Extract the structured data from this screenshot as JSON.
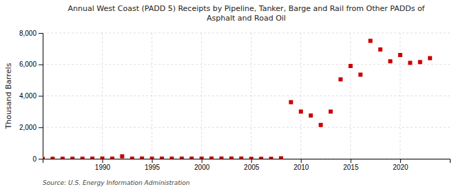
{
  "chart_data": {
    "type": "scatter",
    "title": "Annual West Coast (PADD 5) Receipts by Pipeline, Tanker, Barge and Rail from Other PADDs of\nAsphalt and Road Oil",
    "ylabel": "Thousand Barrels",
    "annotations": [
      "Source: U.S. Energy Information Administration"
    ],
    "x": [
      1984,
      1985,
      1986,
      1987,
      1988,
      1989,
      1990,
      1991,
      1992,
      1993,
      1994,
      1995,
      1996,
      1997,
      1998,
      1999,
      2000,
      2001,
      2002,
      2003,
      2004,
      2005,
      2006,
      2007,
      2008,
      2009,
      2010,
      2011,
      2012,
      2013,
      2014,
      2015,
      2016,
      2017,
      2018,
      2019,
      2020,
      2021,
      2022,
      2023
    ],
    "values": [
      0,
      2,
      5,
      5,
      5,
      10,
      15,
      10,
      155,
      10,
      15,
      10,
      10,
      10,
      10,
      10,
      10,
      15,
      15,
      15,
      15,
      0,
      0,
      0,
      30,
      3600,
      3000,
      2750,
      2150,
      3000,
      5050,
      5900,
      5350,
      7500,
      6950,
      6200,
      6600,
      6100,
      6150,
      6400
    ],
    "color": "#cc0000",
    "marker": "square",
    "xlim": [
      1984,
      2025
    ],
    "xticks": [
      1990,
      1995,
      2000,
      2005,
      2010,
      2015,
      2020
    ],
    "ylim": [
      0,
      8000
    ],
    "yticks": [
      0,
      {
        "value": 2000,
        "label": "2,000"
      },
      {
        "value": 4000,
        "label": "4,000"
      },
      {
        "value": 6000,
        "label": "6,000"
      },
      {
        "value": 8000,
        "label": "8,000"
      }
    ],
    "grid": true
  }
}
